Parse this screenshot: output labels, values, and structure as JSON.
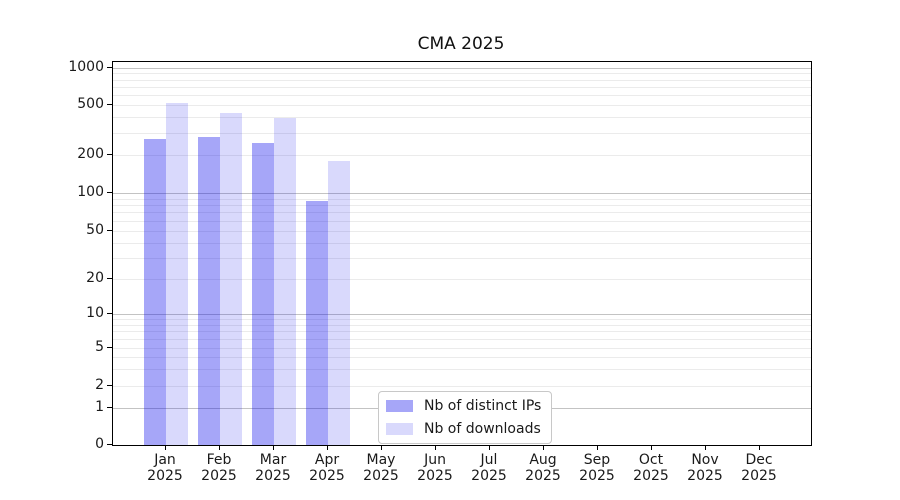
{
  "title": "CMA 2025",
  "chart_data": {
    "type": "bar",
    "title": "CMA 2025",
    "categories": [
      "Jan 2025",
      "Feb 2025",
      "Mar 2025",
      "Apr 2025",
      "May 2025",
      "Jun 2025",
      "Jul 2025",
      "Aug 2025",
      "Sep 2025",
      "Oct 2025",
      "Nov 2025",
      "Dec 2025"
    ],
    "series": [
      {
        "name": "Nb of distinct IPs",
        "color": "rgba(0,0,235,0.35)",
        "values": [
          265,
          275,
          250,
          86,
          null,
          null,
          null,
          null,
          null,
          null,
          null,
          null
        ]
      },
      {
        "name": "Nb of downloads",
        "color": "rgba(0,0,235,0.15)",
        "values": [
          525,
          430,
          395,
          178,
          null,
          null,
          null,
          null,
          null,
          null,
          null,
          null
        ]
      }
    ],
    "yscale": "symlog",
    "yticks": [
      0,
      1,
      2,
      5,
      10,
      20,
      50,
      100,
      200,
      500,
      1000
    ],
    "ylim": [
      0,
      1000
    ],
    "grid": true,
    "legend_position": "lower center"
  }
}
